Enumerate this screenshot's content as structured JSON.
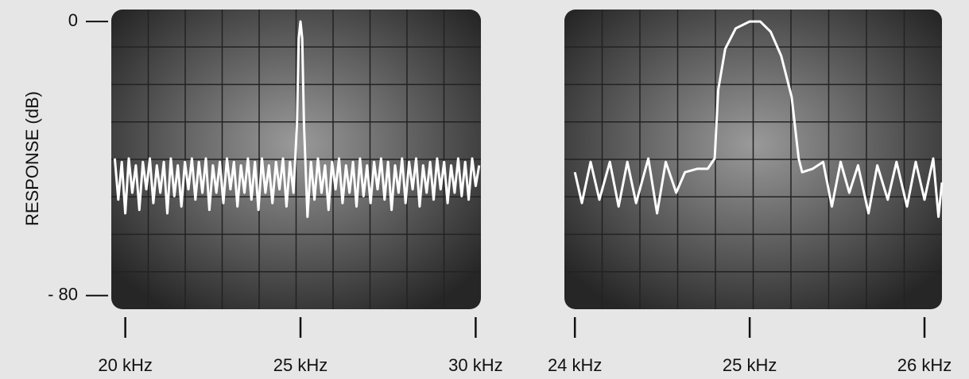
{
  "chart_data": [
    {
      "type": "line",
      "y_label": "RESPONSE (dB)",
      "color": "#ffffff",
      "x": [
        19.7,
        19.8,
        19.9,
        20.0,
        20.1,
        20.2,
        20.3,
        20.4,
        20.5,
        20.6,
        20.7,
        20.8,
        20.9,
        21.0,
        21.1,
        21.2,
        21.3,
        21.4,
        21.5,
        21.6,
        21.7,
        21.8,
        21.9,
        22.0,
        22.1,
        22.2,
        22.3,
        22.4,
        22.5,
        22.6,
        22.7,
        22.8,
        22.9,
        23.0,
        23.1,
        23.2,
        23.3,
        23.4,
        23.5,
        23.6,
        23.7,
        23.8,
        23.9,
        24.0,
        24.1,
        24.2,
        24.3,
        24.4,
        24.5,
        24.6,
        24.7,
        24.8,
        24.9,
        24.95,
        25.0,
        25.05,
        25.1,
        25.2,
        25.3,
        25.4,
        25.5,
        25.6,
        25.7,
        25.8,
        25.9,
        26.0,
        26.1,
        26.2,
        26.3,
        26.4,
        26.5,
        26.6,
        26.7,
        26.8,
        26.9,
        27.0,
        27.1,
        27.2,
        27.3,
        27.4,
        27.5,
        27.6,
        27.7,
        27.8,
        27.9,
        28.0,
        28.1,
        28.2,
        28.3,
        28.4,
        28.5,
        28.6,
        28.7,
        28.8,
        28.9,
        29.0,
        29.1,
        29.2,
        29.3,
        29.4,
        29.5,
        29.6,
        29.7,
        29.8,
        29.9,
        30.0,
        30.1
      ],
      "values": [
        -40,
        -52,
        -41,
        -56,
        -40,
        -50,
        -42,
        -55,
        -41,
        -49,
        -40,
        -53,
        -42,
        -50,
        -41,
        -56,
        -40,
        -51,
        -42,
        -54,
        -41,
        -49,
        -40,
        -52,
        -41,
        -50,
        -40,
        -55,
        -42,
        -50,
        -41,
        -53,
        -40,
        -49,
        -41,
        -54,
        -42,
        -50,
        -40,
        -52,
        -41,
        -55,
        -40,
        -50,
        -42,
        -53,
        -41,
        -49,
        -40,
        -54,
        -41,
        -50,
        -30,
        -5,
        0,
        -5,
        -30,
        -57,
        -41,
        -52,
        -40,
        -50,
        -42,
        -55,
        -41,
        -49,
        -40,
        -53,
        -42,
        -50,
        -41,
        -54,
        -40,
        -51,
        -42,
        -53,
        -41,
        -49,
        -40,
        -52,
        -41,
        -55,
        -42,
        -50,
        -40,
        -53,
        -41,
        -49,
        -40,
        -54,
        -42,
        -50,
        -41,
        -52,
        -40,
        -49,
        -41,
        -53,
        -42,
        -50,
        -40,
        -51,
        -41,
        -52,
        -40,
        -48,
        -42
      ],
      "xlim": [
        19.6,
        30.15
      ],
      "xticks": [
        {
          "value": 20,
          "label": "20  kHz"
        },
        {
          "value": 25,
          "label": "25 kHz"
        },
        {
          "value": 30,
          "label": "30 kHz"
        }
      ],
      "ylim": [
        -84,
        3.5
      ],
      "yticks": [
        0,
        {
          "value": -80,
          "label": "- 80"
        }
      ]
    },
    {
      "type": "line",
      "color": "#ffffff",
      "x": [
        24.0,
        24.04,
        24.09,
        24.14,
        24.2,
        24.25,
        24.3,
        24.35,
        24.42,
        24.47,
        24.52,
        24.58,
        24.63,
        24.7,
        24.76,
        24.8,
        24.82,
        24.86,
        24.92,
        25.0,
        25.06,
        25.12,
        25.18,
        25.24,
        25.28,
        25.3,
        25.36,
        25.42,
        25.47,
        25.52,
        25.57,
        25.62,
        25.68,
        25.73,
        25.79,
        25.84,
        25.9,
        25.95,
        26.0,
        26.05,
        26.08,
        26.1
      ],
      "values": [
        -44,
        -53,
        -41,
        -52,
        -41,
        -54,
        -41,
        -53,
        -40,
        -56,
        -41,
        -50,
        -44,
        -43,
        -43,
        -40,
        -20,
        -8,
        -2,
        0,
        0,
        -3,
        -10,
        -22,
        -40,
        -44,
        -43,
        -41,
        -54,
        -41,
        -50,
        -42,
        -56,
        -42,
        -52,
        -41,
        -54,
        -41,
        -52,
        -40,
        -57,
        -47
      ],
      "xlim": [
        23.94,
        26.1
      ],
      "xticks": [
        {
          "value": 24,
          "label": "24 kHz"
        },
        {
          "value": 25,
          "label": "25 kHz"
        },
        {
          "value": 26,
          "label": "26 kHz"
        }
      ],
      "ylim": [
        -84,
        3.5
      ]
    }
  ]
}
